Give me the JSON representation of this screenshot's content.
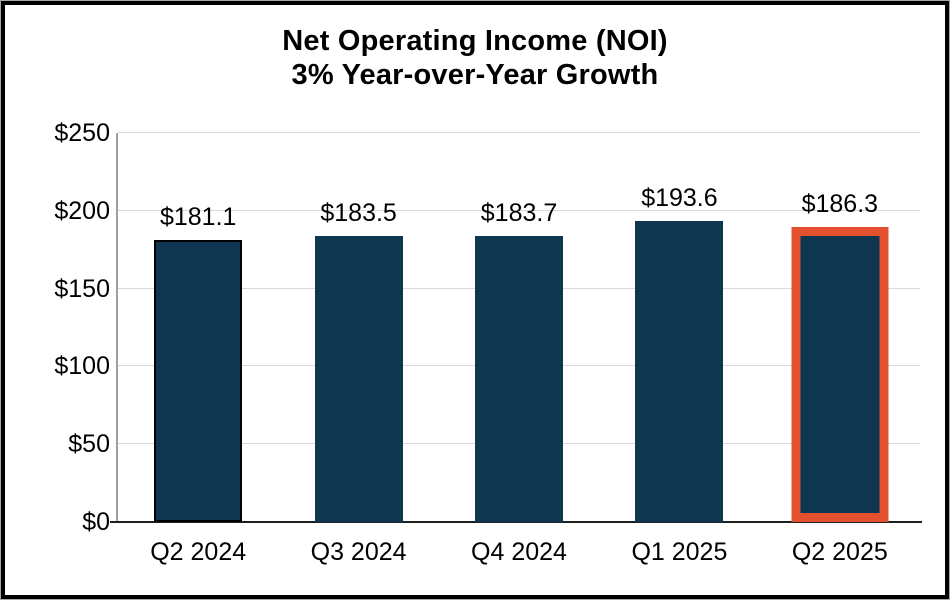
{
  "chart_data": {
    "type": "bar",
    "title": "Net Operating Income (NOI)",
    "subtitle": "3% Year-over-Year Growth",
    "categories": [
      "Q2 2024",
      "Q3 2024",
      "Q4 2024",
      "Q1 2025",
      "Q2 2025"
    ],
    "values": [
      181.1,
      183.5,
      183.7,
      193.6,
      186.3
    ],
    "data_labels": [
      "$181.1",
      "$183.5",
      "$183.7",
      "$193.6",
      "$186.3"
    ],
    "y_tick_values": [
      0,
      50,
      100,
      150,
      200,
      250
    ],
    "y_tick_labels": [
      "$0",
      "$50",
      "$100",
      "$150",
      "$200",
      "$250"
    ],
    "ylim": [
      0,
      250
    ],
    "grid": true,
    "legend": "none",
    "bar_variants": [
      "outline-black",
      "plain",
      "plain",
      "plain",
      "outline-orange"
    ],
    "styles": {
      "bar_fill": "#0F3650",
      "first_bar_outline": "#000000",
      "highlight_bar_outline": "#E2502D",
      "gridline_color": "#D9D9D9",
      "x_axis_color": "#1F1F1F",
      "y_axis_color": "#A0A0A0",
      "text_color": "#000000",
      "frame_border": "#000000"
    }
  }
}
